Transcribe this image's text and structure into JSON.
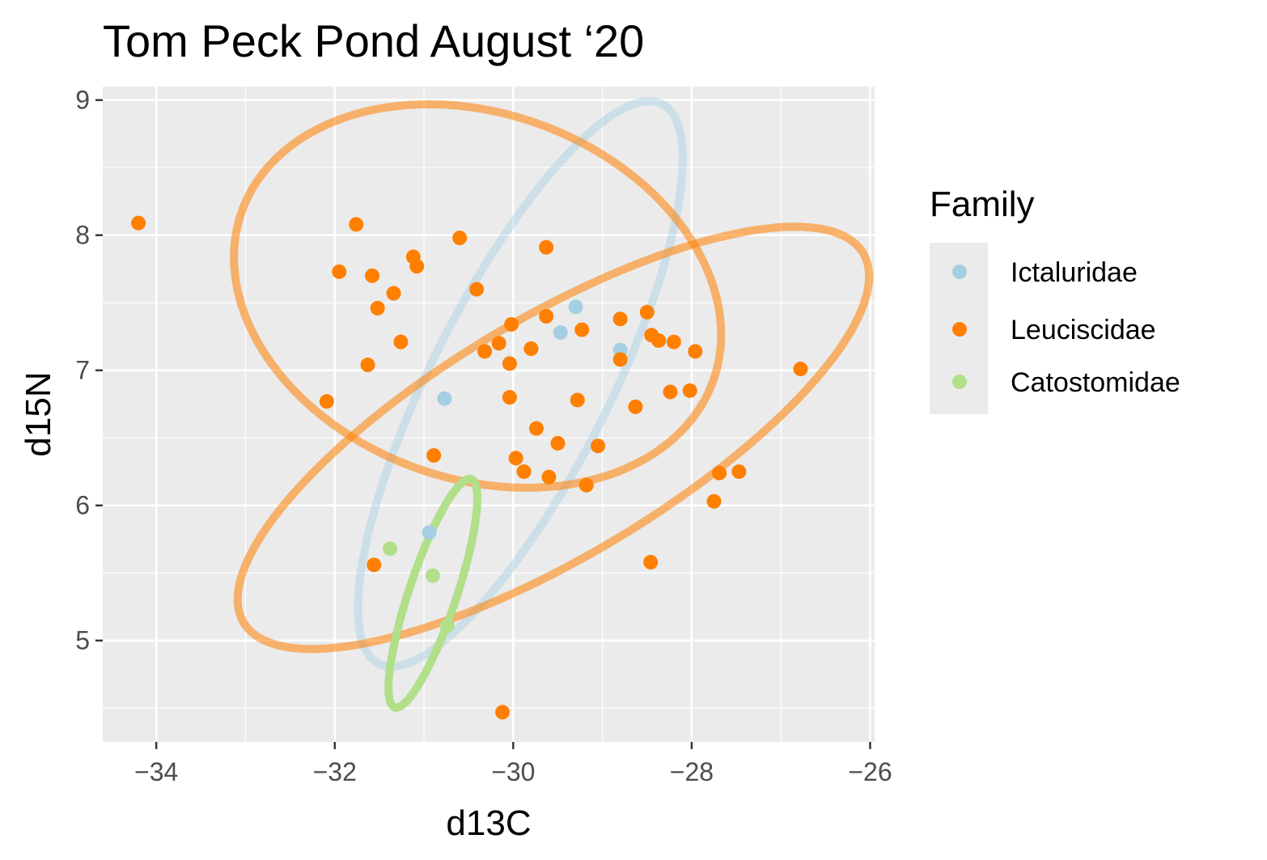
{
  "chart_data": {
    "type": "scatter",
    "title": "Tom Peck Pond August ‘20",
    "xlabel": "d13C",
    "ylabel": "d15N",
    "xlim": [
      -34.6,
      -25.95
    ],
    "ylim": [
      4.25,
      9.1
    ],
    "x_ticks": [
      -34,
      -32,
      -30,
      -28,
      -26
    ],
    "x_tick_labels": [
      "−34",
      "−32",
      "−30",
      "−28",
      "−26"
    ],
    "y_ticks": [
      5,
      6,
      7,
      8,
      9
    ],
    "y_tick_labels": [
      "5",
      "6",
      "7",
      "8",
      "9"
    ],
    "grid": true,
    "legend": {
      "title": "Family",
      "position": "right",
      "entries": [
        "Ictaluridae",
        "Leuciscidae",
        "Catostomidae"
      ]
    },
    "series": [
      {
        "name": "Ictaluridae",
        "color": "#a6cee3",
        "points": [
          [
            -29.3,
            7.47
          ],
          [
            -29.47,
            7.28
          ],
          [
            -28.8,
            7.15
          ],
          [
            -30.77,
            6.79
          ],
          [
            -30.94,
            5.8
          ]
        ],
        "ellipse": {
          "center": [
            -29.92,
            6.9
          ],
          "semi_axes": [
            2.63,
            0.88
          ],
          "angle_deg": 50,
          "opacity": 0.45
        }
      },
      {
        "name": "Leuciscidae",
        "color": "#ff7f00",
        "points": [
          [
            -34.2,
            8.09
          ],
          [
            -31.76,
            8.08
          ],
          [
            -30.6,
            7.98
          ],
          [
            -29.63,
            7.91
          ],
          [
            -31.12,
            7.84
          ],
          [
            -31.08,
            7.77
          ],
          [
            -31.95,
            7.73
          ],
          [
            -31.58,
            7.7
          ],
          [
            -30.41,
            7.6
          ],
          [
            -31.34,
            7.57
          ],
          [
            -31.52,
            7.46
          ],
          [
            -28.5,
            7.43
          ],
          [
            -29.63,
            7.4
          ],
          [
            -28.8,
            7.38
          ],
          [
            -30.02,
            7.34
          ],
          [
            -29.23,
            7.3
          ],
          [
            -28.45,
            7.26
          ],
          [
            -28.37,
            7.22
          ],
          [
            -31.26,
            7.21
          ],
          [
            -28.2,
            7.21
          ],
          [
            -30.16,
            7.2
          ],
          [
            -29.8,
            7.16
          ],
          [
            -30.32,
            7.14
          ],
          [
            -27.96,
            7.14
          ],
          [
            -28.8,
            7.08
          ],
          [
            -30.04,
            7.05
          ],
          [
            -31.63,
            7.04
          ],
          [
            -26.78,
            7.01
          ],
          [
            -28.24,
            6.84
          ],
          [
            -28.02,
            6.85
          ],
          [
            -30.04,
            6.8
          ],
          [
            -29.28,
            6.78
          ],
          [
            -32.09,
            6.77
          ],
          [
            -28.63,
            6.73
          ],
          [
            -29.74,
            6.57
          ],
          [
            -29.5,
            6.46
          ],
          [
            -29.05,
            6.44
          ],
          [
            -30.89,
            6.37
          ],
          [
            -29.97,
            6.35
          ],
          [
            -29.88,
            6.25
          ],
          [
            -27.47,
            6.25
          ],
          [
            -27.69,
            6.24
          ],
          [
            -29.6,
            6.21
          ],
          [
            -29.18,
            6.15
          ],
          [
            -27.75,
            6.03
          ],
          [
            -31.56,
            5.56
          ],
          [
            -28.46,
            5.58
          ],
          [
            -30.12,
            4.47
          ]
        ],
        "ellipses": [
          {
            "center": [
              -29.55,
              6.5
            ],
            "semi_axes": [
              3.75,
              0.95
            ],
            "angle_deg": 20,
            "opacity": 0.55
          },
          {
            "center": [
              -30.4,
              7.55
            ],
            "semi_axes": [
              2.75,
              1.38
            ],
            "angle_deg": -8,
            "opacity": 0.55
          }
        ]
      },
      {
        "name": "Catostomidae",
        "color": "#b2df8a",
        "points": [
          [
            -31.38,
            5.68
          ],
          [
            -30.9,
            5.48
          ],
          [
            -30.74,
            5.11
          ]
        ],
        "ellipse": {
          "center": [
            -30.9,
            5.35
          ],
          "semi_axes": [
            0.95,
            0.25
          ],
          "angle_deg": 62,
          "opacity": 1.0
        }
      }
    ]
  }
}
